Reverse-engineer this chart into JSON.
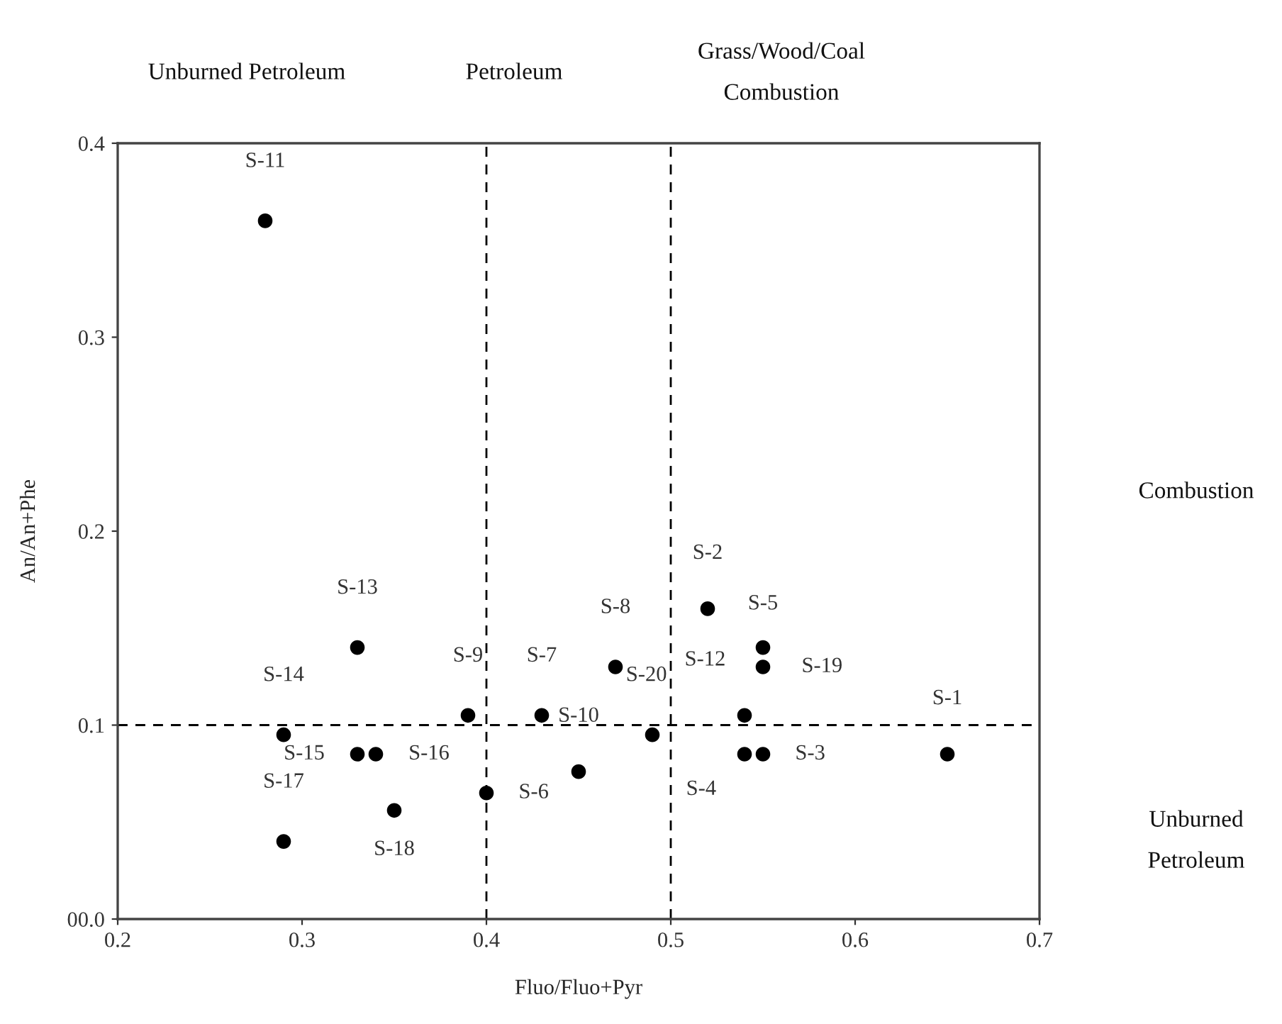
{
  "chart_data": {
    "type": "scatter",
    "xlabel": "Fluo/Fluo+Pyr",
    "ylabel": "An/An+Phe",
    "x": [
      0.65,
      0.52,
      0.55,
      0.54,
      0.55,
      0.4,
      0.43,
      0.47,
      0.39,
      0.45,
      0.28,
      0.54,
      0.33,
      0.29,
      0.33,
      0.34,
      0.29,
      0.35,
      0.55,
      0.49
    ],
    "series": [
      {
        "color": "#000000",
        "values": [
          0.085,
          0.16,
          0.085,
          0.085,
          0.14,
          0.065,
          0.105,
          0.13,
          0.105,
          0.076,
          0.36,
          0.105,
          0.14,
          0.095,
          0.085,
          0.085,
          0.04,
          0.056,
          0.13,
          0.095
        ]
      }
    ],
    "marker": "circle",
    "grid": false,
    "legend": false,
    "xlim": [
      0.2,
      0.7
    ],
    "xticks": [
      0.2,
      0.3,
      0.4,
      0.5,
      0.6,
      0.7
    ],
    "ylim": [
      0.0,
      0.4
    ],
    "yticks": [
      {
        "value": 0.0,
        "label": "00.0"
      },
      0.1,
      0.2,
      0.3,
      0.4
    ],
    "ref_lines": [
      {
        "axis": "x",
        "value": 0.4,
        "color": "#000000",
        "line_style": "dashed"
      },
      {
        "axis": "x",
        "value": 0.5,
        "color": "#000000",
        "line_style": "dashed"
      },
      {
        "axis": "y",
        "value": 0.1,
        "color": "#000000",
        "line_style": "dashed"
      }
    ],
    "annotations": [
      {
        "text": "S-1",
        "x": 0.65,
        "y": 0.085
      },
      {
        "text": "S-2",
        "x": 0.52,
        "y": 0.16
      },
      {
        "text": "S-3",
        "x": 0.55,
        "y": 0.085
      },
      {
        "text": "S-4",
        "x": 0.54,
        "y": 0.085
      },
      {
        "text": "S-5",
        "x": 0.55,
        "y": 0.14
      },
      {
        "text": "S-6",
        "x": 0.4,
        "y": 0.065
      },
      {
        "text": "S-7",
        "x": 0.43,
        "y": 0.105
      },
      {
        "text": "S-8",
        "x": 0.47,
        "y": 0.13
      },
      {
        "text": "S-9",
        "x": 0.39,
        "y": 0.105
      },
      {
        "text": "S-10",
        "x": 0.45,
        "y": 0.076
      },
      {
        "text": "S-11",
        "x": 0.28,
        "y": 0.36
      },
      {
        "text": "S-12",
        "x": 0.54,
        "y": 0.105
      },
      {
        "text": "S-13",
        "x": 0.33,
        "y": 0.14
      },
      {
        "text": "S-14",
        "x": 0.29,
        "y": 0.095
      },
      {
        "text": "S-15",
        "x": 0.33,
        "y": 0.085
      },
      {
        "text": "S-16",
        "x": 0.34,
        "y": 0.085
      },
      {
        "text": "S-17",
        "x": 0.29,
        "y": 0.04
      },
      {
        "text": "S-18",
        "x": 0.35,
        "y": 0.056
      },
      {
        "text": "S-19",
        "x": 0.55,
        "y": 0.13
      },
      {
        "text": "S-20",
        "x": 0.49,
        "y": 0.095
      },
      "Unburned Petroleum",
      "Petroleum",
      "Grass/Wood/Coal\nCombustion",
      "Combustion",
      "Unburned\nPetroleum"
    ]
  }
}
